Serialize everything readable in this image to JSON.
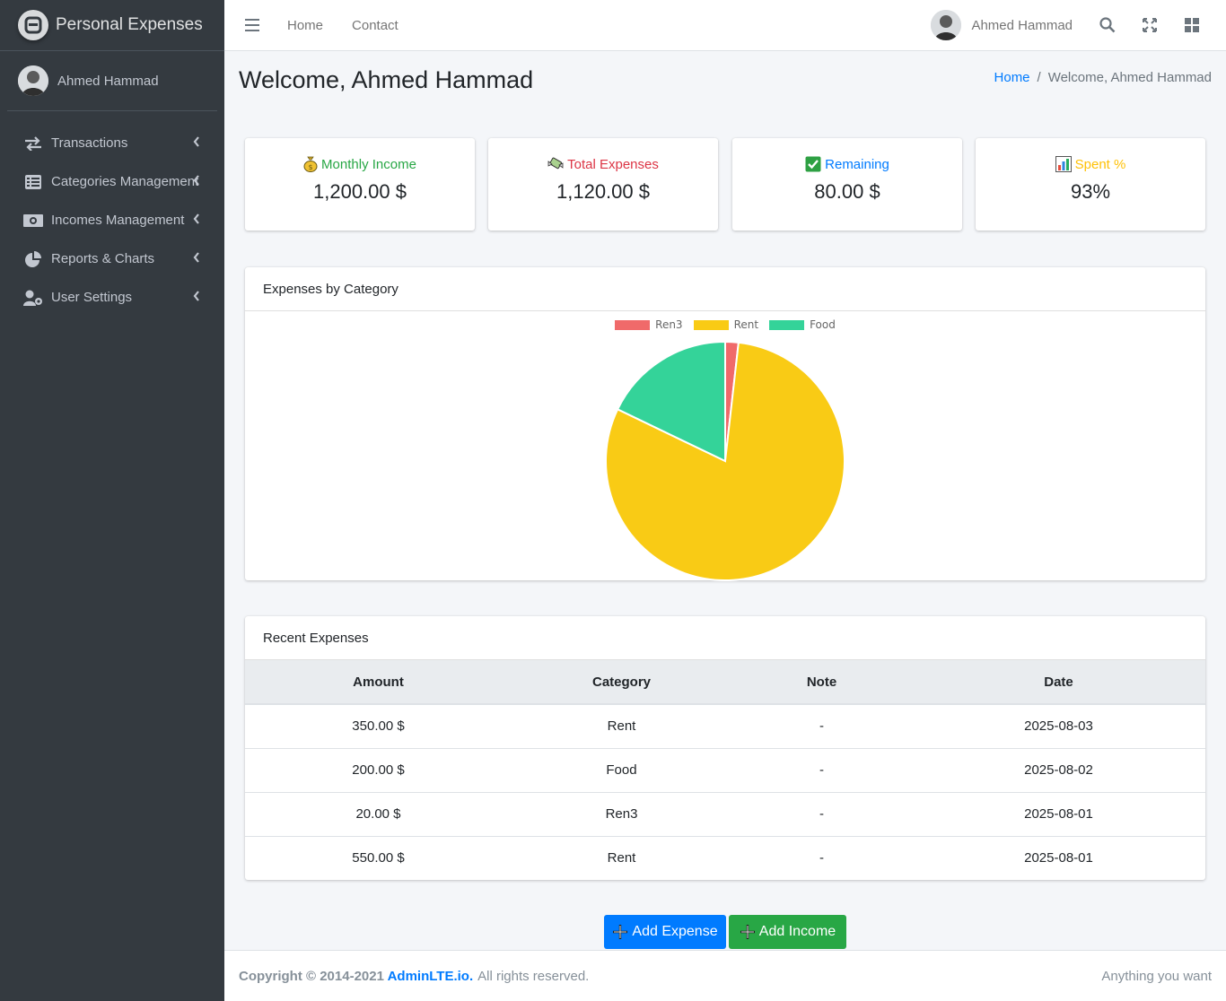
{
  "brand": {
    "title": "Personal Expenses"
  },
  "user": {
    "name": "Ahmed Hammad"
  },
  "sidebar": {
    "items": [
      {
        "label": "Transactions",
        "icon": "exchange-icon"
      },
      {
        "label": "Categories Management",
        "icon": "list-icon"
      },
      {
        "label": "Incomes Management",
        "icon": "money-bill-icon"
      },
      {
        "label": "Reports & Charts",
        "icon": "pie-chart-icon"
      },
      {
        "label": "User Settings",
        "icon": "user-cog-icon"
      }
    ]
  },
  "topbar": {
    "home": "Home",
    "contact": "Contact",
    "user_name": "Ahmed Hammad"
  },
  "page": {
    "title": "Welcome, Ahmed Hammad",
    "breadcrumb": {
      "home": "Home",
      "current": "Welcome, Ahmed Hammad"
    }
  },
  "stats": [
    {
      "title": "Monthly Income",
      "value": "1,200.00 $",
      "color": "#28a745",
      "icon": "money-bag-icon"
    },
    {
      "title": "Total Expenses",
      "value": "1,120.00 $",
      "color": "#dc3545",
      "icon": "money-wings-icon"
    },
    {
      "title": "Remaining",
      "value": "80.00 $",
      "color": "#007bff",
      "icon": "check-mark-icon"
    },
    {
      "title": "Spent %",
      "value": "93%",
      "color": "#ffc107",
      "icon": "bar-chart-icon"
    }
  ],
  "chart_card": {
    "title": "Expenses by Category"
  },
  "chart_data": {
    "type": "pie",
    "title": "Expenses by Category",
    "categories": [
      "Ren3",
      "Rent",
      "Food"
    ],
    "values": [
      20,
      900,
      200
    ],
    "colors": [
      "#f06a6a",
      "#f9cb15",
      "#34d399"
    ],
    "legend": "top"
  },
  "recent": {
    "title": "Recent Expenses",
    "columns": [
      "Amount",
      "Category",
      "Note",
      "Date"
    ],
    "rows": [
      [
        "350.00 $",
        "Rent",
        "-",
        "2025-08-03"
      ],
      [
        "200.00 $",
        "Food",
        "-",
        "2025-08-02"
      ],
      [
        "20.00 $",
        "Ren3",
        "-",
        "2025-08-01"
      ],
      [
        "550.00 $",
        "Rent",
        "-",
        "2025-08-01"
      ]
    ]
  },
  "actions": {
    "add_expense": "Add Expense",
    "add_income": "Add Income"
  },
  "footer": {
    "copyright": "Copyright © 2014-2021",
    "link": "AdminLTE.io.",
    "rights": "All rights reserved.",
    "right_text": "Anything you want"
  }
}
